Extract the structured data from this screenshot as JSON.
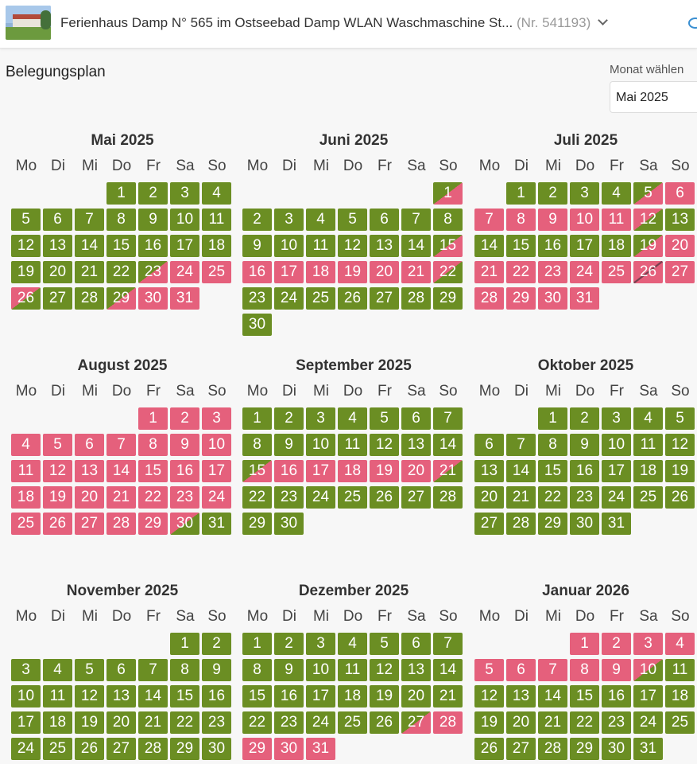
{
  "header": {
    "title": "Ferienhaus Damp N° 565 im Ostseebad Damp WLAN Waschmaschine St...",
    "number": "(Nr. 541193)"
  },
  "page": {
    "heading": "Belegungsplan",
    "month_select_label": "Monat wählen",
    "month_select_value": "Mai 2025"
  },
  "legend_colors": {
    "free": "#6b8e23",
    "booked": "#e5607c"
  },
  "weekdays": [
    "Mo",
    "Di",
    "Mi",
    "Do",
    "Fr",
    "Sa",
    "So"
  ],
  "months": [
    {
      "title": "Mai 2025",
      "offset": 3,
      "days": "AAAAAAAAAAAAAAAAAAAAAAAAAAAAAAAAAAAAAAAAABBBBBABBBB"
    },
    {
      "title": "Juni 2025",
      "offset": 6,
      "days": "AB"
    },
    {
      "title": "Juli 2025",
      "offset": 1,
      "days": ""
    },
    {
      "title": "August 2025",
      "offset": 4,
      "days": ""
    },
    {
      "title": "September 2025",
      "offset": 0,
      "days": ""
    },
    {
      "title": "Oktober 2025",
      "offset": 2,
      "days": ""
    },
    {
      "title": "November 2025",
      "offset": 5,
      "days": ""
    },
    {
      "title": "Dezember 2025",
      "offset": 0,
      "days": ""
    },
    {
      "title": "Januar 2026",
      "offset": 3,
      "days": ""
    }
  ]
}
